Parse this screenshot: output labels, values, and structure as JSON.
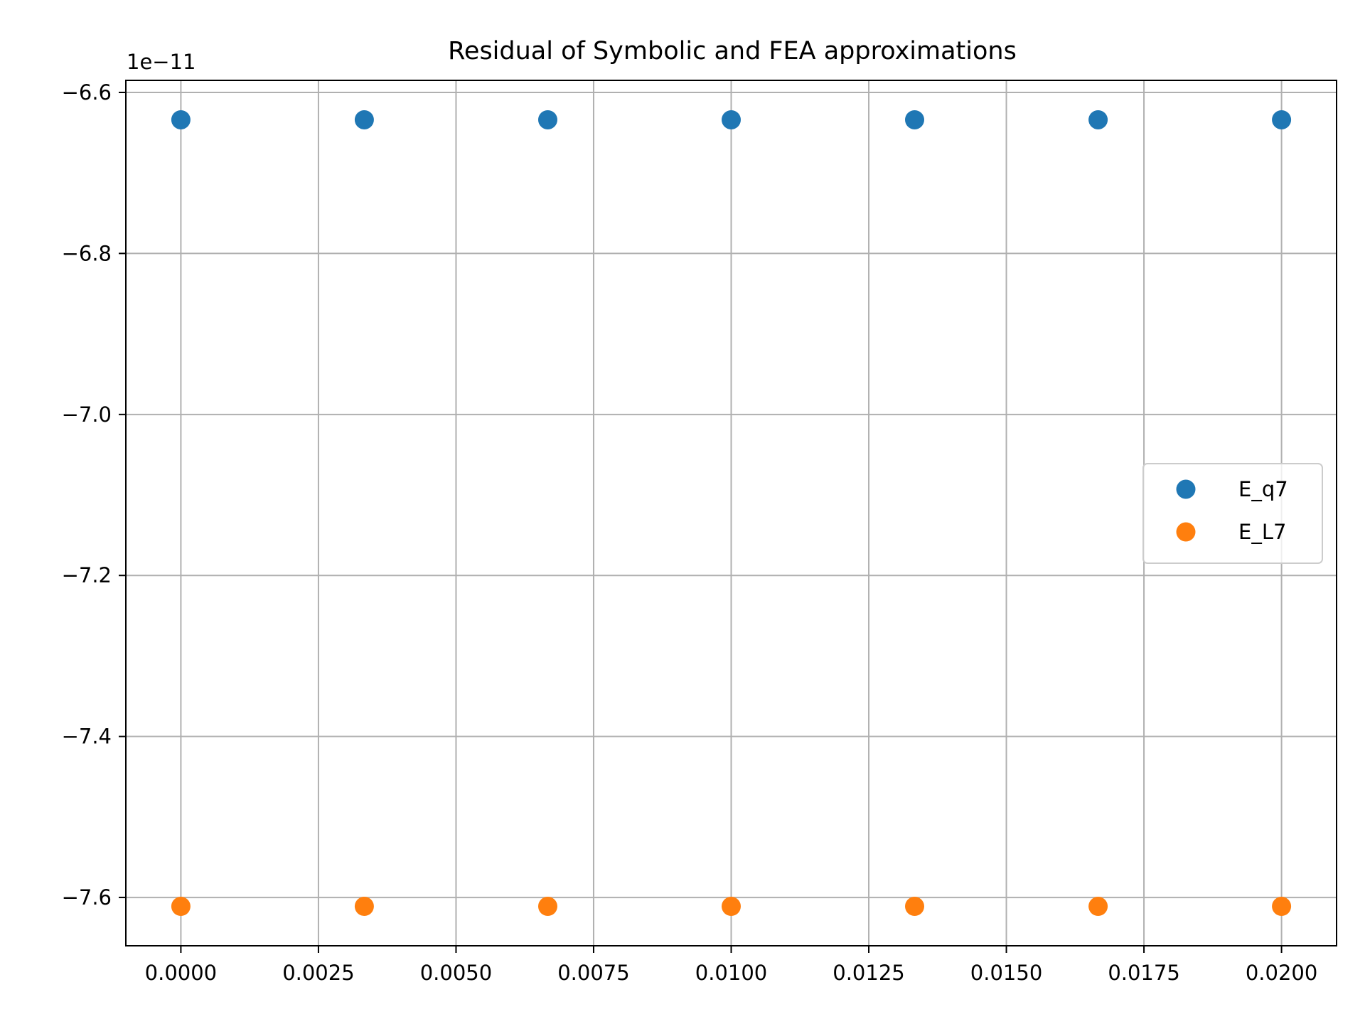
{
  "chart_data": {
    "type": "scatter",
    "title": "Residual of Symbolic and FEA approximations",
    "xlabel": "",
    "ylabel": "",
    "y_offset_label": "1e−11",
    "xlim": [
      -0.001,
      0.021
    ],
    "ylim": [
      -7.66,
      -6.585
    ],
    "x_ticks": [
      0.0,
      0.0025,
      0.005,
      0.0075,
      0.01,
      0.0125,
      0.015,
      0.0175,
      0.02
    ],
    "x_tick_labels": [
      "0.0000",
      "0.0025",
      "0.0050",
      "0.0075",
      "0.0100",
      "0.0125",
      "0.0150",
      "0.0175",
      "0.0200"
    ],
    "y_ticks": [
      -6.6,
      -6.8,
      -7.0,
      -7.2,
      -7.4,
      -7.6
    ],
    "y_tick_labels": [
      "−6.6",
      "−6.8",
      "−7.0",
      "−7.2",
      "−7.4",
      "−7.6"
    ],
    "grid": true,
    "legend_position": "center-right",
    "x": [
      0.0,
      0.003333,
      0.006667,
      0.01,
      0.013333,
      0.016667,
      0.02
    ],
    "series": [
      {
        "name": "E_q7",
        "color": "#1f77b4",
        "values": [
          -6.634,
          -6.634,
          -6.634,
          -6.634,
          -6.634,
          -6.634,
          -6.634
        ]
      },
      {
        "name": "E_L7",
        "color": "#ff7f0e",
        "values": [
          -7.611,
          -7.611,
          -7.611,
          -7.611,
          -7.611,
          -7.611,
          -7.611
        ]
      }
    ]
  }
}
